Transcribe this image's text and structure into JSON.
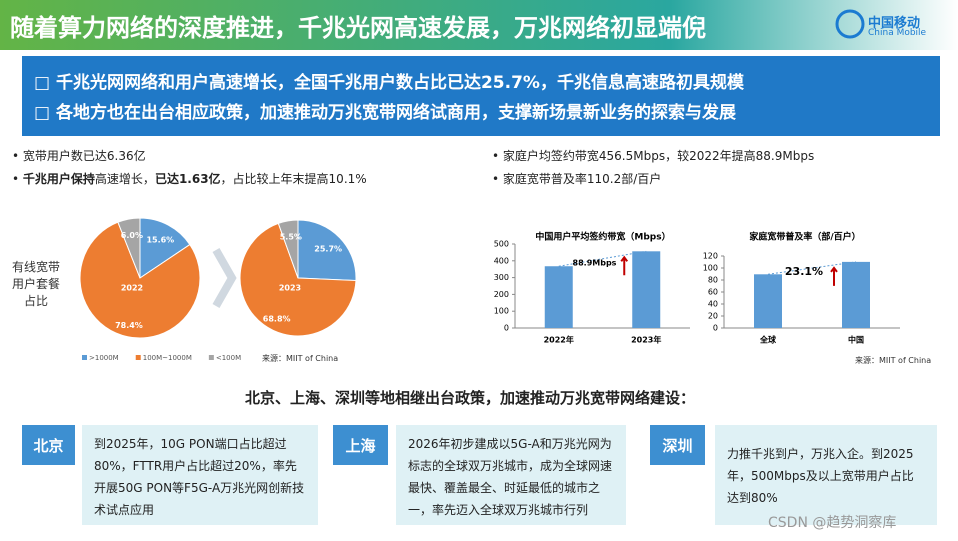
{
  "header": {
    "title": "随着算力网络的深度推进，千兆光网高速发展，万兆网络初显端倪",
    "logo_cn": "中国移动",
    "logo_en": "China Mobile"
  },
  "highlights": [
    "千兆光网网络和用户高速增长，全国千兆用户数占比已达25.7%，千兆信息高速路初具规模",
    "各地方也在出台相应政策，加速推动万兆宽带网络试商用，支撑新场景新业务的探索与发展"
  ],
  "left_bullets": [
    [
      {
        "text": "宽带用户数已达6.36亿",
        "bold": false
      }
    ],
    [
      {
        "text": "千兆用户保持",
        "bold": true
      },
      {
        "text": "高速增长，",
        "bold": false
      },
      {
        "text": "已达1.63亿",
        "bold": true
      },
      {
        "text": "，占比较上年末提高10.1%",
        "bold": false
      }
    ]
  ],
  "right_bullets": [
    "家庭户均签约带宽456.5Mbps，较2022年提高88.9Mbps",
    "家庭宽带普及率110.2部/百户"
  ],
  "pie_caption": "有线宽带用户套餐占比",
  "source_left": "来源：MIIT of China",
  "source_right": "来源：MIIT of China",
  "chart_data": [
    {
      "type": "pie",
      "label": "2022",
      "categories": [
        ">1000M",
        "100M~1000M",
        "<100M"
      ],
      "colors": [
        "#5b9bd5",
        "#ed7d31",
        "#a5a5a5"
      ],
      "values": [
        15.6,
        78.4,
        6.0
      ],
      "value_labels": [
        "15.6%",
        "78.4%",
        "6.0%"
      ]
    },
    {
      "type": "pie",
      "label": "2023",
      "values": [
        25.7,
        68.8,
        5.5
      ],
      "value_labels": [
        "25.7%",
        "68.8%",
        "5.5%"
      ]
    },
    {
      "type": "bar",
      "title": "中国用户平均签约带宽（Mbps）",
      "categories": [
        "2022年",
        "2023年"
      ],
      "values": [
        367.6,
        456.5
      ],
      "color": "#5b9bd5",
      "ylim": [
        0,
        500
      ],
      "yticks": [
        0,
        100,
        200,
        300,
        400,
        500
      ],
      "annotation": "88.9Mbps"
    },
    {
      "type": "bar",
      "title": "家庭宽带普及率（部/百户）",
      "categories": [
        "全球",
        "中国"
      ],
      "values": [
        89.5,
        110.2
      ],
      "color": "#5b9bd5",
      "ylim": [
        0,
        120
      ],
      "yticks": [
        0,
        20,
        40,
        60,
        80,
        100,
        120
      ],
      "annotation": "23.1%"
    }
  ],
  "section_title": "北京、上海、深圳等地相继出台政策，加速推动万兆宽带网络建设：",
  "cities": [
    {
      "name": "北京",
      "text": "到2025年，10G PON端口占比超过80%，FTTR用户占比超过20%，率先开展50G PON等F5G-A万兆光网创新技术试点应用"
    },
    {
      "name": "上海",
      "text": "2026年初步建成以5G-A和万兆光网为标志的全球双万兆城市，成为全球网速最快、覆盖最全、时延最低的城市之一，率先迈入全球双万兆城市行列"
    },
    {
      "name": "深圳",
      "text": "力推千兆到户，万兆入企。到2025年，500Mbps及以上宽带用户占比达到80%"
    }
  ],
  "watermark": "CSDN @趋势洞察库"
}
